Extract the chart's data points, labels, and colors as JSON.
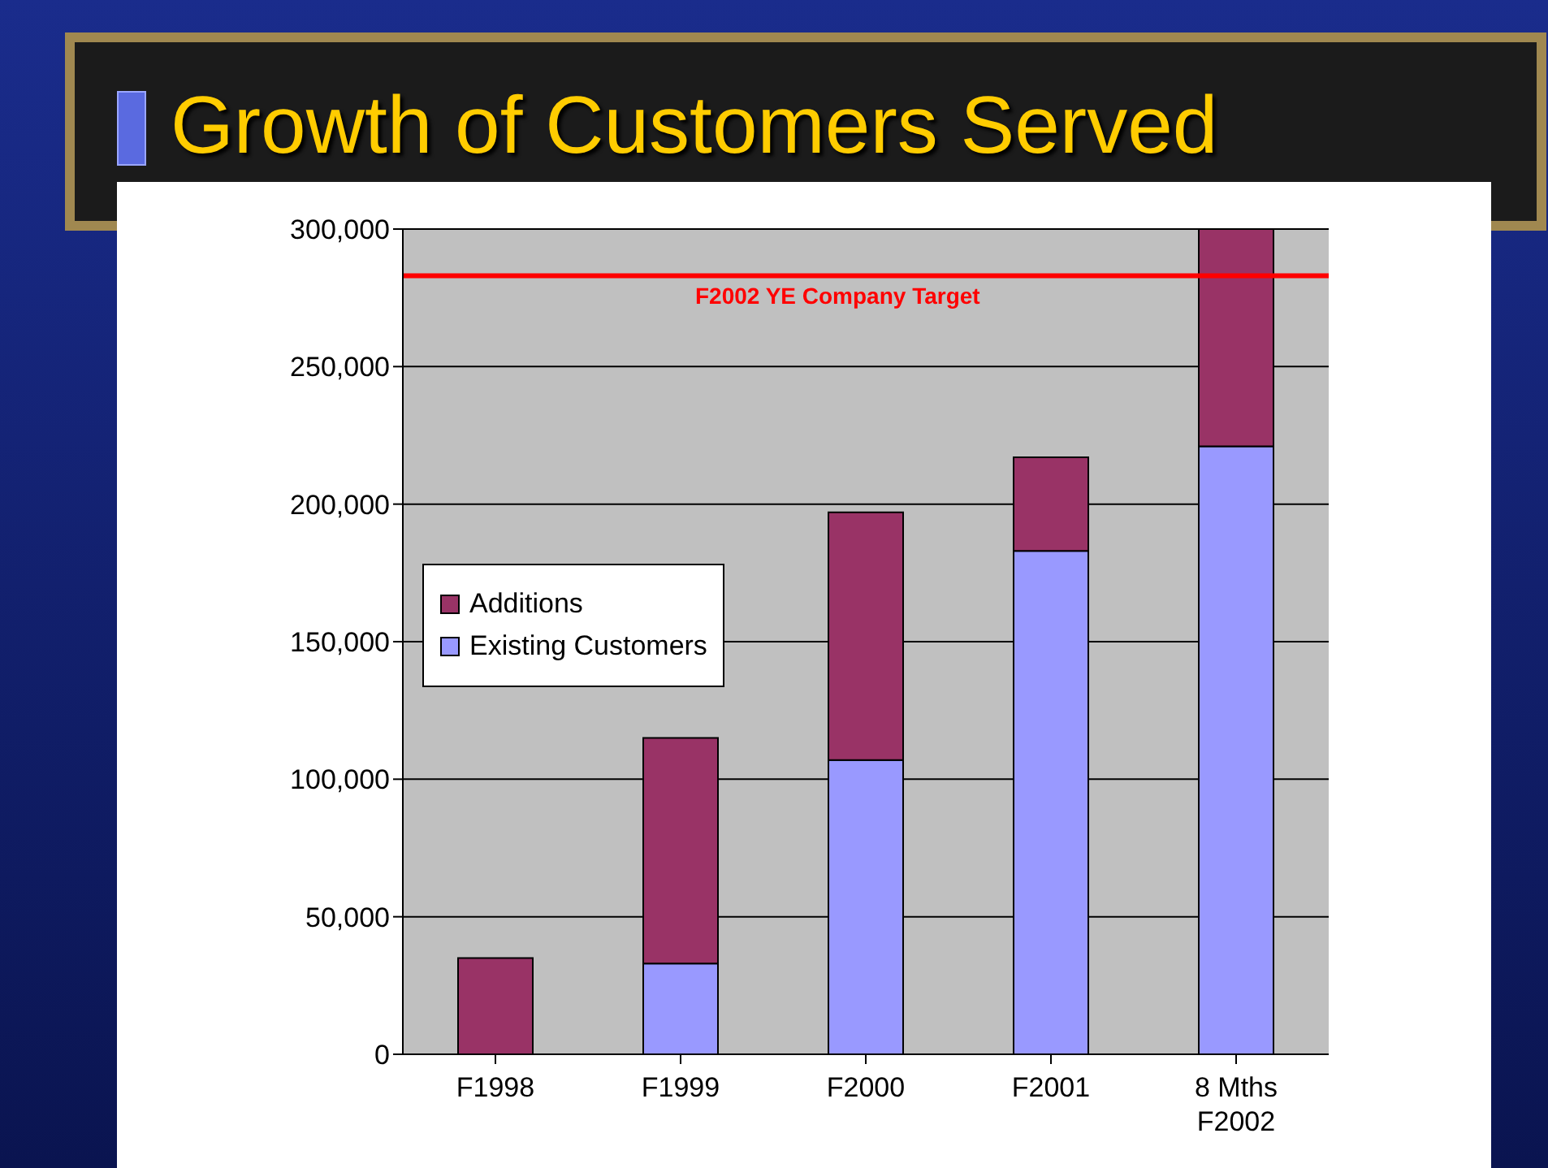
{
  "chart_data": {
    "type": "bar",
    "title": "Growth of Customers Served",
    "categories": [
      "F1998",
      "F1999",
      "F2000",
      "F2001",
      "8 Mths\nF2002"
    ],
    "series": [
      {
        "name": "Existing Customers",
        "color": "#9999ff",
        "values": [
          0,
          33000,
          107000,
          183000,
          221000
        ]
      },
      {
        "name": "Additions",
        "color": "#993366",
        "values": [
          35000,
          82000,
          90000,
          34000,
          79000
        ]
      }
    ],
    "stacked": true,
    "ylim": [
      0,
      300000
    ],
    "yticks": [
      0,
      {
        "value": 50000,
        "label": "50,000"
      },
      {
        "value": 100000,
        "label": "100,000"
      },
      {
        "value": 150000,
        "label": "150,000"
      },
      {
        "value": 200000,
        "label": "200,000"
      },
      {
        "value": 250000,
        "label": "250,000"
      },
      {
        "value": 300000,
        "label": "300,000"
      }
    ],
    "grid": "y",
    "legend": "left",
    "ref_lines": [
      {
        "axis": "y",
        "value": 283000,
        "label": "F2002 YE Company Target",
        "color": "#ff0000"
      }
    ]
  }
}
